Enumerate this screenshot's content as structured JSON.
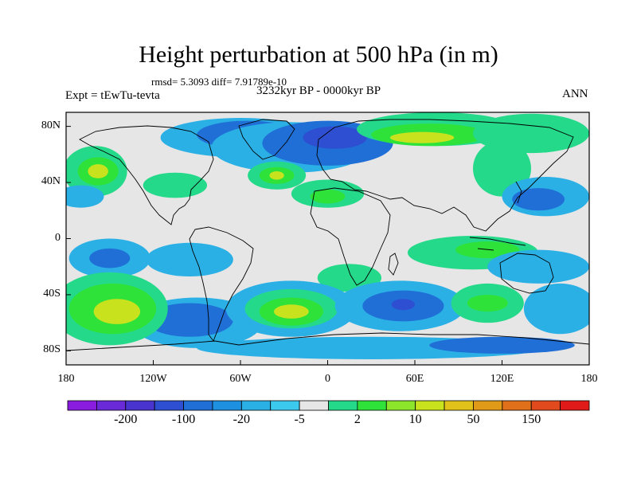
{
  "title": "Height perturbation at 500 hPa (in m)",
  "stats": "rmsd= 5.3093 diff= 7.91789e-10",
  "left_string": "Expt = tEwTu-tevta",
  "center_string": "3232kyr BP - 0000kyr BP",
  "right_string": "ANN",
  "map": {
    "lat_range": [
      -90,
      90
    ],
    "lon_range": [
      -180,
      180
    ],
    "lat_ticks": [
      {
        "value": 80,
        "label": "80N"
      },
      {
        "value": 40,
        "label": "40N"
      },
      {
        "value": 0,
        "label": "0"
      },
      {
        "value": -40,
        "label": "40S"
      },
      {
        "value": -80,
        "label": "80S"
      }
    ],
    "lon_ticks": [
      {
        "value": -180,
        "label": "180"
      },
      {
        "value": -120,
        "label": "120W"
      },
      {
        "value": -60,
        "label": "60W"
      },
      {
        "value": 0,
        "label": "0"
      },
      {
        "value": 60,
        "label": "60E"
      },
      {
        "value": 120,
        "label": "120E"
      },
      {
        "value": 180,
        "label": "180"
      }
    ],
    "background_color": "#e6e6e6",
    "blobs": [
      {
        "lon": -60,
        "lat": 72,
        "rlon": 55,
        "rlat": 14,
        "level": "-5"
      },
      {
        "lon": -55,
        "lat": 74,
        "rlon": 35,
        "rlat": 10,
        "level": "-20"
      },
      {
        "lon": -25,
        "lat": 65,
        "rlon": 55,
        "rlat": 18,
        "level": "-5"
      },
      {
        "lon": 0,
        "lat": 68,
        "rlon": 45,
        "rlat": 16,
        "level": "-20"
      },
      {
        "lon": 5,
        "lat": 72,
        "rlon": 22,
        "rlat": 8,
        "level": "-100"
      },
      {
        "lon": -160,
        "lat": 48,
        "rlon": 22,
        "rlat": 18,
        "level": "2"
      },
      {
        "lon": -158,
        "lat": 48,
        "rlon": 14,
        "rlat": 10,
        "level": "10"
      },
      {
        "lon": -158,
        "lat": 48,
        "rlon": 7,
        "rlat": 5,
        "level": "50"
      },
      {
        "lon": -35,
        "lat": 45,
        "rlon": 20,
        "rlat": 10,
        "level": "2"
      },
      {
        "lon": -35,
        "lat": 45,
        "rlon": 12,
        "rlat": 6,
        "level": "10"
      },
      {
        "lon": -35,
        "lat": 45,
        "rlon": 5,
        "rlat": 3,
        "level": "50"
      },
      {
        "lon": -105,
        "lat": 38,
        "rlon": 22,
        "rlat": 9,
        "level": "2"
      },
      {
        "lon": 0,
        "lat": 32,
        "rlon": 25,
        "rlat": 10,
        "level": "2"
      },
      {
        "lon": 0,
        "lat": 30,
        "rlon": 12,
        "rlat": 5,
        "level": "10"
      },
      {
        "lon": -170,
        "lat": 30,
        "rlon": 16,
        "rlat": 8,
        "level": "-5"
      },
      {
        "lon": 75,
        "lat": 78,
        "rlon": 55,
        "rlat": 12,
        "level": "2"
      },
      {
        "lon": 70,
        "lat": 74,
        "rlon": 40,
        "rlat": 8,
        "level": "10"
      },
      {
        "lon": 65,
        "lat": 72,
        "rlon": 22,
        "rlat": 4,
        "level": "50"
      },
      {
        "lon": 140,
        "lat": 75,
        "rlon": 40,
        "rlat": 14,
        "level": "2"
      },
      {
        "lon": 120,
        "lat": 50,
        "rlon": 20,
        "rlat": 20,
        "level": "2"
      },
      {
        "lon": 150,
        "lat": 30,
        "rlon": 30,
        "rlat": 14,
        "level": "-5"
      },
      {
        "lon": 145,
        "lat": 28,
        "rlon": 18,
        "rlat": 8,
        "level": "-20"
      },
      {
        "lon": -150,
        "lat": -14,
        "rlon": 28,
        "rlat": 14,
        "level": "-5"
      },
      {
        "lon": -150,
        "lat": -14,
        "rlon": 14,
        "rlat": 7,
        "level": "-20"
      },
      {
        "lon": -95,
        "lat": -15,
        "rlon": 30,
        "rlat": 12,
        "level": "-5"
      },
      {
        "lon": 15,
        "lat": -28,
        "rlon": 22,
        "rlat": 10,
        "level": "2"
      },
      {
        "lon": 100,
        "lat": -10,
        "rlon": 45,
        "rlat": 12,
        "level": "2"
      },
      {
        "lon": 110,
        "lat": -8,
        "rlon": 22,
        "rlat": 6,
        "level": "10"
      },
      {
        "lon": 145,
        "lat": -20,
        "rlon": 35,
        "rlat": 12,
        "level": "-5"
      },
      {
        "lon": -90,
        "lat": -60,
        "rlon": 45,
        "rlat": 18,
        "level": "-5"
      },
      {
        "lon": -95,
        "lat": -58,
        "rlon": 30,
        "rlat": 12,
        "level": "-20"
      },
      {
        "lon": -150,
        "lat": -50,
        "rlon": 40,
        "rlat": 26,
        "level": "2"
      },
      {
        "lon": -148,
        "lat": -50,
        "rlon": 30,
        "rlat": 18,
        "level": "10"
      },
      {
        "lon": -145,
        "lat": -52,
        "rlon": 16,
        "rlat": 9,
        "level": "50"
      },
      {
        "lon": -25,
        "lat": -50,
        "rlon": 45,
        "rlat": 20,
        "level": "-5"
      },
      {
        "lon": -25,
        "lat": -50,
        "rlon": 32,
        "rlat": 14,
        "level": "2"
      },
      {
        "lon": -25,
        "lat": -52,
        "rlon": 22,
        "rlat": 10,
        "level": "10"
      },
      {
        "lon": -25,
        "lat": -52,
        "rlon": 12,
        "rlat": 5,
        "level": "50"
      },
      {
        "lon": 50,
        "lat": -48,
        "rlon": 45,
        "rlat": 18,
        "level": "-5"
      },
      {
        "lon": 52,
        "lat": -48,
        "rlon": 28,
        "rlat": 11,
        "level": "-20"
      },
      {
        "lon": 52,
        "lat": -47,
        "rlon": 8,
        "rlat": 4,
        "level": "-100"
      },
      {
        "lon": 110,
        "lat": -46,
        "rlon": 25,
        "rlat": 14,
        "level": "2"
      },
      {
        "lon": 110,
        "lat": -46,
        "rlon": 14,
        "rlat": 6,
        "level": "10"
      },
      {
        "lon": 160,
        "lat": -50,
        "rlon": 25,
        "rlat": 18,
        "level": "-5"
      },
      {
        "lon": 30,
        "lat": -78,
        "rlon": 120,
        "rlat": 8,
        "level": "-5"
      },
      {
        "lon": 120,
        "lat": -76,
        "rlon": 50,
        "rlat": 6,
        "level": "-20"
      }
    ]
  },
  "colorbar": {
    "colors": [
      "#8a1ce0",
      "#6a2ad8",
      "#4a34cf",
      "#2e4fd1",
      "#1f6fd6",
      "#1e90e0",
      "#2bb0e6",
      "#3cc9ee",
      "#e6e6e6",
      "#24d98a",
      "#2ee23a",
      "#8ce52a",
      "#c8e21e",
      "#e0c21a",
      "#e09a18",
      "#e0701a",
      "#e04a1c",
      "#e01a18"
    ],
    "labels": [
      {
        "text": "-200",
        "index": 1
      },
      {
        "text": "-100",
        "index": 3
      },
      {
        "text": "-20",
        "index": 5
      },
      {
        "text": "-5",
        "index": 7
      },
      {
        "text": "2",
        "index": 9
      },
      {
        "text": "10",
        "index": 11
      },
      {
        "text": "50",
        "index": 13
      },
      {
        "text": "150",
        "index": 15
      }
    ],
    "level_colors": {
      "-100": "#2e4fd1",
      "-20": "#1f6fd6",
      "-5": "#2bb0e6",
      "2": "#24d98a",
      "10": "#2ee23a",
      "50": "#c8e21e"
    }
  }
}
